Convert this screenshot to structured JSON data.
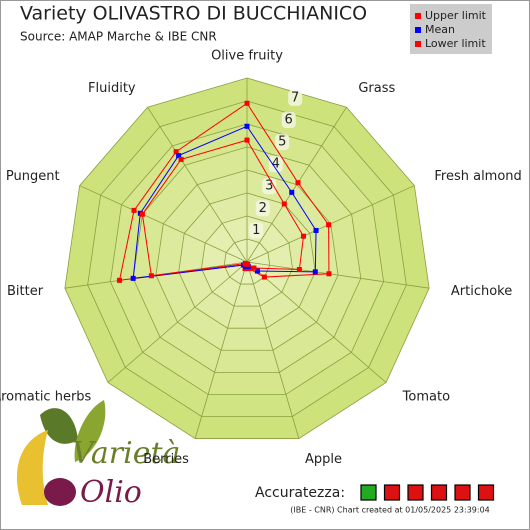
{
  "chart_data": {
    "type": "radar",
    "title": "Variety OLIVASTRO DI BUCCHIANICO",
    "subtitle": "Source: AMAP Marche & IBE CNR",
    "categories": [
      "Olive fruity",
      "Grass",
      "Fresh almond",
      "Artichoke",
      "Tomato",
      "Apple",
      "Berries",
      "Aromatic herbs",
      "Bitter",
      "Pungent",
      "Fluidity"
    ],
    "rlim": [
      0,
      8
    ],
    "rticks": [
      1,
      2,
      3,
      4,
      5,
      6,
      7
    ],
    "legend": "top-right",
    "series": [
      {
        "name": "Upper limit",
        "color": "#ff0000",
        "values": [
          6.9,
          4.1,
          3.9,
          3.6,
          1.0,
          0.3,
          0.3,
          0.2,
          5.6,
          5.4,
          5.7
        ]
      },
      {
        "name": "Mean",
        "color": "#0000ff",
        "values": [
          5.9,
          3.6,
          3.3,
          3.0,
          0.6,
          0.2,
          0.2,
          0.2,
          5.0,
          5.1,
          5.5
        ]
      },
      {
        "name": "Lower limit",
        "color": "#ff0000",
        "values": [
          5.3,
          3.0,
          2.7,
          2.3,
          0.4,
          0.1,
          0.1,
          0.1,
          4.2,
          5.0,
          5.3
        ]
      }
    ],
    "accuracy": {
      "label": "Accuratezza:",
      "boxes": [
        "#22aa22",
        "#dd1111",
        "#dd1111",
        "#dd1111",
        "#dd1111",
        "#dd1111"
      ]
    },
    "footer": "(IBE - CNR) Chart created at 01/05/2025 23:39:04",
    "logo": {
      "top": "Varietà",
      "bottom": "Olio"
    }
  }
}
